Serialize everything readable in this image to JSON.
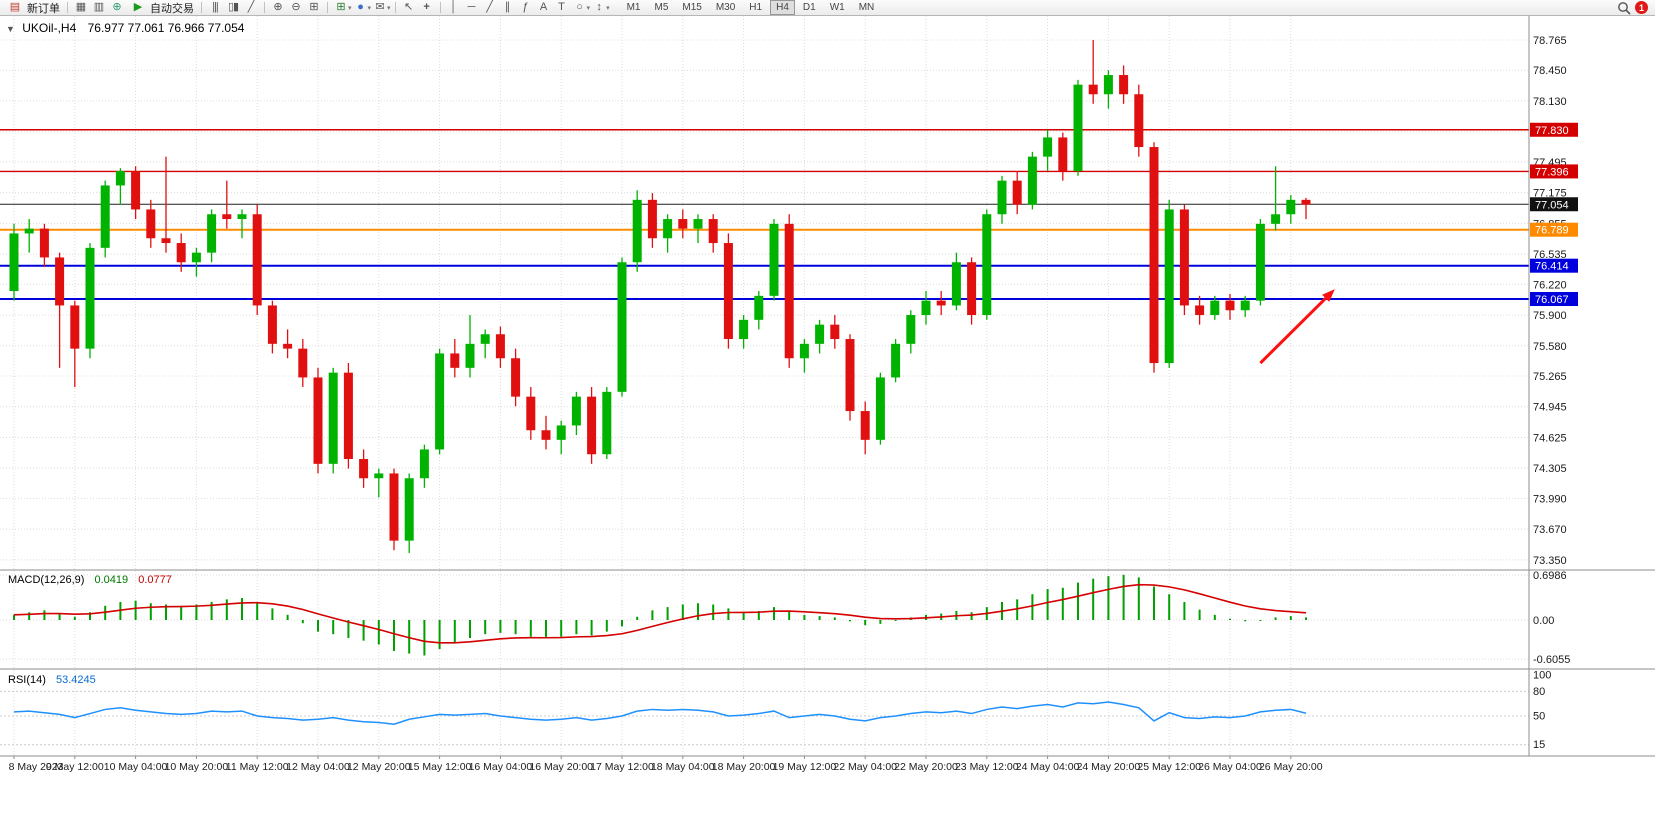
{
  "toolbar": {
    "new_order_label": "新订单",
    "autotrading_label": "自动交易",
    "timeframes": [
      "M1",
      "M5",
      "M15",
      "M30",
      "H1",
      "H4",
      "D1",
      "W1",
      "MN"
    ],
    "active_timeframe": "H4",
    "notification_badge": "1",
    "icons": [
      "new-order-icon",
      "chart-window-icon",
      "print-icon",
      "world-icon",
      "play-icon",
      "bars-chart-icon",
      "candles-chart-icon",
      "line-chart-icon",
      "zoom-in-icon",
      "zoom-out-icon",
      "tile-windows-icon",
      "new-chart-icon",
      "periods-icon",
      "templates-icon",
      "cursor-icon",
      "crosshair-icon",
      "vertical-line-icon",
      "horizontal-line-icon",
      "trendline-icon",
      "equidistant-channel-icon",
      "fibonacci-icon",
      "text-icon",
      "label-icon",
      "shapes-icon",
      "arrows-icon",
      "search-icon"
    ]
  },
  "chart_data": {
    "type": "candlestick",
    "symbol_tf": "UKOil-,H4",
    "ohlc_display": "76.977 77.061 76.966 77.054",
    "colors": {
      "bull": "#00b300",
      "bear": "#e01010"
    },
    "label_interval": 4,
    "time_labels": [
      "8 May 2023",
      "9 May 12:00",
      "10 May 04:00",
      "10 May 20:00",
      "11 May 12:00",
      "12 May 04:00",
      "12 May 20:00",
      "15 May 12:00",
      "16 May 04:00",
      "16 May 20:00",
      "17 May 12:00",
      "18 May 04:00",
      "18 May 20:00",
      "19 May 12:00",
      "22 May 04:00",
      "22 May 20:00",
      "23 May 12:00",
      "24 May 04:00",
      "24 May 20:00",
      "25 May 12:00",
      "26 May 04:00",
      "26 May 20:00"
    ],
    "price_axis": {
      "min": 73.35,
      "max": 78.765,
      "ticks": [
        "78.765",
        "78.450",
        "78.130",
        "77.495",
        "77.175",
        "76.855",
        "76.535",
        "76.220",
        "75.900",
        "75.580",
        "75.265",
        "74.945",
        "74.625",
        "74.305",
        "73.990",
        "73.670",
        "73.350"
      ]
    },
    "candles": [
      [
        76.15,
        76.85,
        76.05,
        76.75
      ],
      [
        76.75,
        76.9,
        76.55,
        76.8
      ],
      [
        76.8,
        76.85,
        76.4,
        76.5
      ],
      [
        76.5,
        76.55,
        75.35,
        76.0
      ],
      [
        76.0,
        76.05,
        75.15,
        75.55
      ],
      [
        75.55,
        76.65,
        75.45,
        76.6
      ],
      [
        76.6,
        77.3,
        76.5,
        77.25
      ],
      [
        77.25,
        77.43,
        77.05,
        77.4
      ],
      [
        77.4,
        77.45,
        76.9,
        77.0
      ],
      [
        77.0,
        77.1,
        76.6,
        76.7
      ],
      [
        76.7,
        77.55,
        76.55,
        76.65
      ],
      [
        76.65,
        76.75,
        76.35,
        76.45
      ],
      [
        76.45,
        76.6,
        76.3,
        76.55
      ],
      [
        76.55,
        77.0,
        76.45,
        76.95
      ],
      [
        76.95,
        77.3,
        76.8,
        76.9
      ],
      [
        76.9,
        77.0,
        76.7,
        76.95
      ],
      [
        76.95,
        77.05,
        75.9,
        76.0
      ],
      [
        76.0,
        76.05,
        75.5,
        75.6
      ],
      [
        75.6,
        75.75,
        75.45,
        75.55
      ],
      [
        75.55,
        75.65,
        75.15,
        75.25
      ],
      [
        75.25,
        75.35,
        74.25,
        74.35
      ],
      [
        74.35,
        75.35,
        74.25,
        75.3
      ],
      [
        75.3,
        75.4,
        74.3,
        74.4
      ],
      [
        74.4,
        74.5,
        74.1,
        74.2
      ],
      [
        74.2,
        74.3,
        74.0,
        74.25
      ],
      [
        74.25,
        74.3,
        73.45,
        73.55
      ],
      [
        73.55,
        74.25,
        73.42,
        74.2
      ],
      [
        74.2,
        74.55,
        74.1,
        74.5
      ],
      [
        74.5,
        75.55,
        74.45,
        75.5
      ],
      [
        75.5,
        75.65,
        75.25,
        75.35
      ],
      [
        75.35,
        75.9,
        75.25,
        75.6
      ],
      [
        75.6,
        75.75,
        75.45,
        75.7
      ],
      [
        75.7,
        75.78,
        75.35,
        75.45
      ],
      [
        75.45,
        75.55,
        74.95,
        75.05
      ],
      [
        75.05,
        75.15,
        74.6,
        74.7
      ],
      [
        74.7,
        74.85,
        74.5,
        74.6
      ],
      [
        74.6,
        74.8,
        74.45,
        74.75
      ],
      [
        74.75,
        75.1,
        74.65,
        75.05
      ],
      [
        75.05,
        75.15,
        74.35,
        74.45
      ],
      [
        74.45,
        75.15,
        74.4,
        75.1
      ],
      [
        75.1,
        76.5,
        75.05,
        76.45
      ],
      [
        76.45,
        77.2,
        76.35,
        77.1
      ],
      [
        77.1,
        77.17,
        76.6,
        76.7
      ],
      [
        76.7,
        76.95,
        76.55,
        76.9
      ],
      [
        76.9,
        77.0,
        76.7,
        76.8
      ],
      [
        76.8,
        76.95,
        76.65,
        76.9
      ],
      [
        76.9,
        76.95,
        76.55,
        76.65
      ],
      [
        76.65,
        76.75,
        75.55,
        75.65
      ],
      [
        75.65,
        75.9,
        75.55,
        75.85
      ],
      [
        75.85,
        76.15,
        75.75,
        76.1
      ],
      [
        76.1,
        76.9,
        76.05,
        76.85
      ],
      [
        76.85,
        76.95,
        75.35,
        75.45
      ],
      [
        75.45,
        75.65,
        75.3,
        75.6
      ],
      [
        75.6,
        75.85,
        75.5,
        75.8
      ],
      [
        75.8,
        75.9,
        75.55,
        75.65
      ],
      [
        75.65,
        75.7,
        74.8,
        74.9
      ],
      [
        74.9,
        75.0,
        74.45,
        74.6
      ],
      [
        74.6,
        75.3,
        74.55,
        75.25
      ],
      [
        75.25,
        75.65,
        75.2,
        75.6
      ],
      [
        75.6,
        75.95,
        75.5,
        75.9
      ],
      [
        75.9,
        76.15,
        75.8,
        76.05
      ],
      [
        76.05,
        76.15,
        75.9,
        76.0
      ],
      [
        76.0,
        76.55,
        75.95,
        76.45
      ],
      [
        76.45,
        76.5,
        75.8,
        75.9
      ],
      [
        75.9,
        77.0,
        75.85,
        76.95
      ],
      [
        76.95,
        77.35,
        76.85,
        77.3
      ],
      [
        77.3,
        77.4,
        76.95,
        77.05
      ],
      [
        77.05,
        77.6,
        77.0,
        77.55
      ],
      [
        77.55,
        77.83,
        77.4,
        77.75
      ],
      [
        77.75,
        77.8,
        77.3,
        77.4
      ],
      [
        77.4,
        78.35,
        77.35,
        78.3
      ],
      [
        78.3,
        78.765,
        78.1,
        78.2
      ],
      [
        78.2,
        78.45,
        78.05,
        78.4
      ],
      [
        78.4,
        78.5,
        78.1,
        78.2
      ],
      [
        78.2,
        78.3,
        77.55,
        77.65
      ],
      [
        77.65,
        77.7,
        75.3,
        75.4
      ],
      [
        75.4,
        77.1,
        75.35,
        77.0
      ],
      [
        77.0,
        77.05,
        75.9,
        76.0
      ],
      [
        76.0,
        76.1,
        75.8,
        75.9
      ],
      [
        75.9,
        76.1,
        75.85,
        76.05
      ],
      [
        76.05,
        76.12,
        75.85,
        75.95
      ],
      [
        75.95,
        76.1,
        75.88,
        76.05
      ],
      [
        76.05,
        76.9,
        76.0,
        76.85
      ],
      [
        76.85,
        77.45,
        76.78,
        76.95
      ],
      [
        76.95,
        77.15,
        76.85,
        77.1
      ],
      [
        77.1,
        77.12,
        76.9,
        77.05
      ]
    ],
    "hlines": [
      {
        "price": 77.83,
        "label": "77.830",
        "color": "#d40000",
        "width": 1.4
      },
      {
        "price": 77.396,
        "label": "77.396",
        "color": "#d40000",
        "width": 1.4
      },
      {
        "price": 76.789,
        "label": "76.789",
        "color": "#ff8a00",
        "width": 2
      },
      {
        "price": 76.414,
        "label": "76.414",
        "color": "#0000dd",
        "width": 2
      },
      {
        "price": 76.067,
        "label": "76.067",
        "color": "#0000dd",
        "width": 2
      }
    ],
    "current_price": {
      "price": 77.054,
      "label": "77.054",
      "color": "#111111"
    },
    "macd": {
      "name": "MACD(12,26,9)",
      "value1": "0.0419",
      "value2": "0.0777",
      "hist_color": "#00a000",
      "signal_color": "#d40000",
      "axis_labels": [
        "0.6986",
        "0.00",
        "-0.6055"
      ],
      "axis_values": [
        0.6986,
        0,
        -0.6055
      ],
      "hist": [
        0.08,
        0.12,
        0.15,
        0.1,
        0.05,
        0.12,
        0.22,
        0.28,
        0.3,
        0.26,
        0.24,
        0.22,
        0.24,
        0.28,
        0.32,
        0.34,
        0.28,
        0.18,
        0.08,
        -0.05,
        -0.18,
        -0.22,
        -0.28,
        -0.32,
        -0.38,
        -0.48,
        -0.52,
        -0.55,
        -0.45,
        -0.35,
        -0.28,
        -0.22,
        -0.2,
        -0.22,
        -0.26,
        -0.28,
        -0.26,
        -0.22,
        -0.24,
        -0.18,
        -0.1,
        0.05,
        0.15,
        0.2,
        0.24,
        0.26,
        0.24,
        0.18,
        0.12,
        0.14,
        0.2,
        0.14,
        0.08,
        0.06,
        0.04,
        -0.02,
        -0.08,
        -0.06,
        0.0,
        0.04,
        0.08,
        0.1,
        0.14,
        0.12,
        0.2,
        0.28,
        0.32,
        0.4,
        0.48,
        0.5,
        0.58,
        0.64,
        0.68,
        0.7,
        0.66,
        0.52,
        0.4,
        0.28,
        0.16,
        0.08,
        0.02,
        -0.02,
        0.0,
        0.04,
        0.06,
        0.04
      ]
    },
    "rsi": {
      "name": "RSI(14)",
      "value": "53.4245",
      "color": "#1e90ff",
      "levels": [
        80,
        50,
        15
      ],
      "axis_labels": [
        "100",
        "80",
        "50",
        "15"
      ],
      "axis_values": [
        100,
        80,
        50,
        15
      ],
      "series": [
        55,
        56,
        54,
        52,
        48,
        53,
        58,
        60,
        57,
        55,
        53,
        52,
        53,
        56,
        55,
        56,
        50,
        48,
        47,
        45,
        46,
        48,
        45,
        43,
        42,
        40,
        46,
        49,
        52,
        51,
        52,
        53,
        50,
        48,
        46,
        45,
        46,
        48,
        45,
        47,
        50,
        56,
        58,
        57,
        58,
        57,
        55,
        50,
        51,
        53,
        56,
        48,
        50,
        52,
        50,
        46,
        44,
        48,
        50,
        53,
        55,
        54,
        56,
        53,
        58,
        61,
        59,
        62,
        64,
        61,
        66,
        65,
        67,
        64,
        60,
        44,
        54,
        48,
        47,
        49,
        48,
        50,
        55,
        57,
        58,
        53.4
      ]
    },
    "arrow": {
      "from": {
        "index": 82,
        "price": 75.4
      },
      "to": {
        "index": 86.9,
        "price": 76.17
      },
      "color": "#ff1010"
    }
  }
}
